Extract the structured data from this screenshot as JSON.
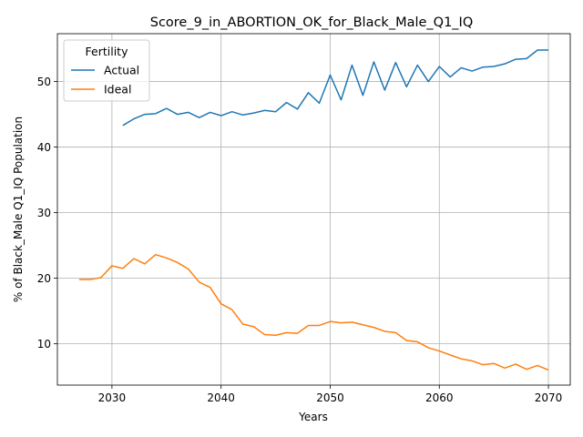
{
  "chart_data": {
    "type": "line",
    "title": "Score_9_in_ABORTION_OK_for_Black_Male_Q1_IQ",
    "xlabel": "Years",
    "ylabel": "% of Black_Male Q1_IQ Population",
    "xlim": [
      2025,
      2072
    ],
    "ylim": [
      3.7,
      57.3
    ],
    "xticks": [
      2030,
      2040,
      2050,
      2060,
      2070
    ],
    "yticks": [
      10,
      20,
      30,
      40,
      50
    ],
    "grid": true,
    "legend": {
      "title": "Fertility",
      "placement": "upper-left"
    },
    "series": [
      {
        "name": "Actual",
        "color": "#1f77b4",
        "x": [
          2031,
          2032,
          2033,
          2034,
          2035,
          2036,
          2037,
          2038,
          2039,
          2040,
          2041,
          2042,
          2043,
          2044,
          2045,
          2046,
          2047,
          2048,
          2049,
          2050,
          2051,
          2052,
          2053,
          2054,
          2055,
          2056,
          2057,
          2058,
          2059,
          2060,
          2061,
          2062,
          2063,
          2064,
          2065,
          2066,
          2067,
          2068,
          2069,
          2070
        ],
        "y": [
          43.3,
          44.3,
          45.0,
          45.1,
          45.9,
          45.0,
          45.3,
          44.5,
          45.3,
          44.8,
          45.4,
          44.9,
          45.2,
          45.6,
          45.4,
          46.8,
          45.8,
          48.3,
          46.7,
          51.0,
          47.2,
          52.5,
          47.9,
          53.0,
          48.7,
          52.9,
          49.2,
          52.5,
          50.0,
          52.3,
          50.7,
          52.1,
          51.6,
          52.2,
          52.3,
          52.7,
          53.4,
          53.5,
          54.8,
          54.8
        ]
      },
      {
        "name": "Ideal",
        "color": "#ff7f0e",
        "x": [
          2027,
          2028,
          2029,
          2030,
          2031,
          2032,
          2033,
          2034,
          2035,
          2036,
          2037,
          2038,
          2039,
          2040,
          2041,
          2042,
          2043,
          2044,
          2045,
          2046,
          2047,
          2048,
          2049,
          2050,
          2051,
          2052,
          2053,
          2054,
          2055,
          2056,
          2057,
          2058,
          2059,
          2060,
          2061,
          2062,
          2063,
          2064,
          2065,
          2066,
          2067,
          2068,
          2069,
          2070
        ],
        "y": [
          19.8,
          19.8,
          20.1,
          21.9,
          21.5,
          23.0,
          22.2,
          23.6,
          23.1,
          22.4,
          21.4,
          19.4,
          18.6,
          16.1,
          15.2,
          13.0,
          12.6,
          11.4,
          11.3,
          11.7,
          11.6,
          12.8,
          12.8,
          13.4,
          13.2,
          13.3,
          12.9,
          12.5,
          11.9,
          11.7,
          10.5,
          10.3,
          9.4,
          8.9,
          8.3,
          7.7,
          7.4,
          6.8,
          7.0,
          6.3,
          6.9,
          6.1,
          6.7,
          6.0
        ]
      }
    ]
  }
}
